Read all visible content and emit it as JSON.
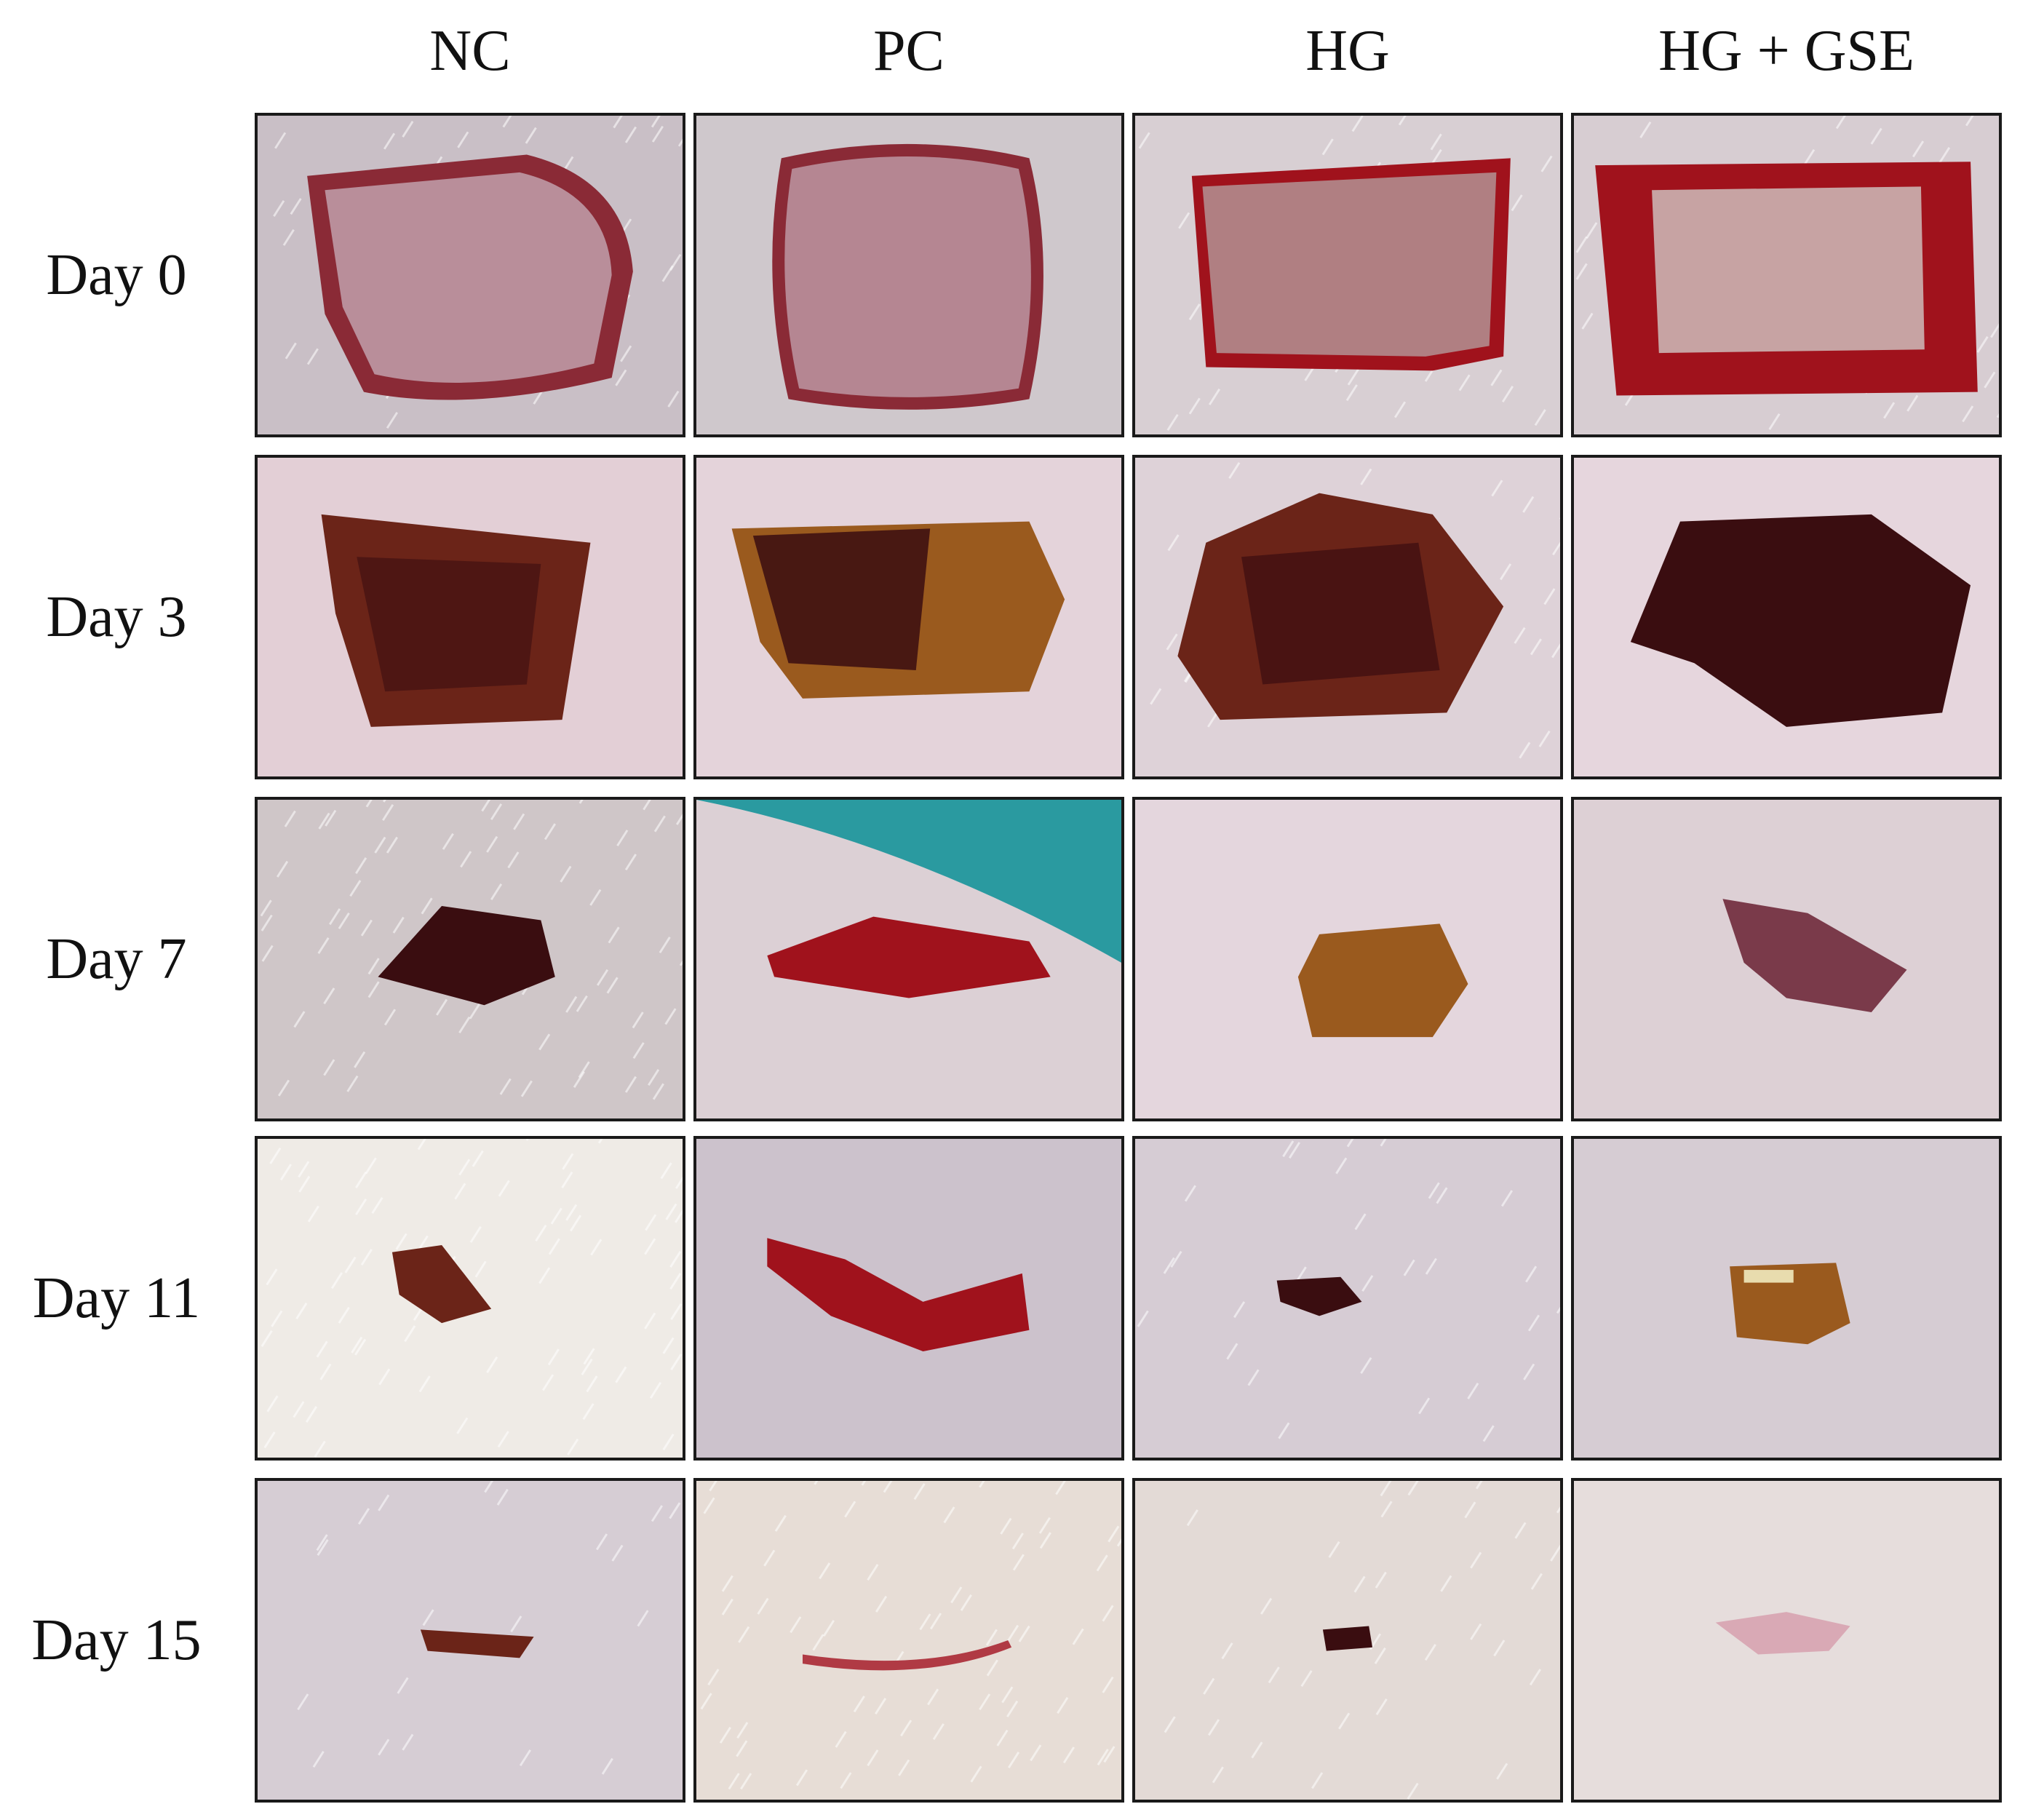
{
  "columns": [
    "NC",
    "PC",
    "HG",
    "HG + GSE"
  ],
  "rows": [
    "Day 0",
    "Day 3",
    "Day 7",
    "Day 11",
    "Day 15"
  ],
  "colors": {
    "skin": "#dcd0d8",
    "skin_day0": "#c9bfc6",
    "fur": "#f2eee6",
    "wound_fresh": "#8a2a36",
    "wound_rim": "#a0121c",
    "scab_dark": "#3a0d10",
    "scab_brown": "#6b2418",
    "scab_amber": "#9a5a1e",
    "cloth_teal": "#2a9aa0",
    "border": "#1a1a1a"
  }
}
